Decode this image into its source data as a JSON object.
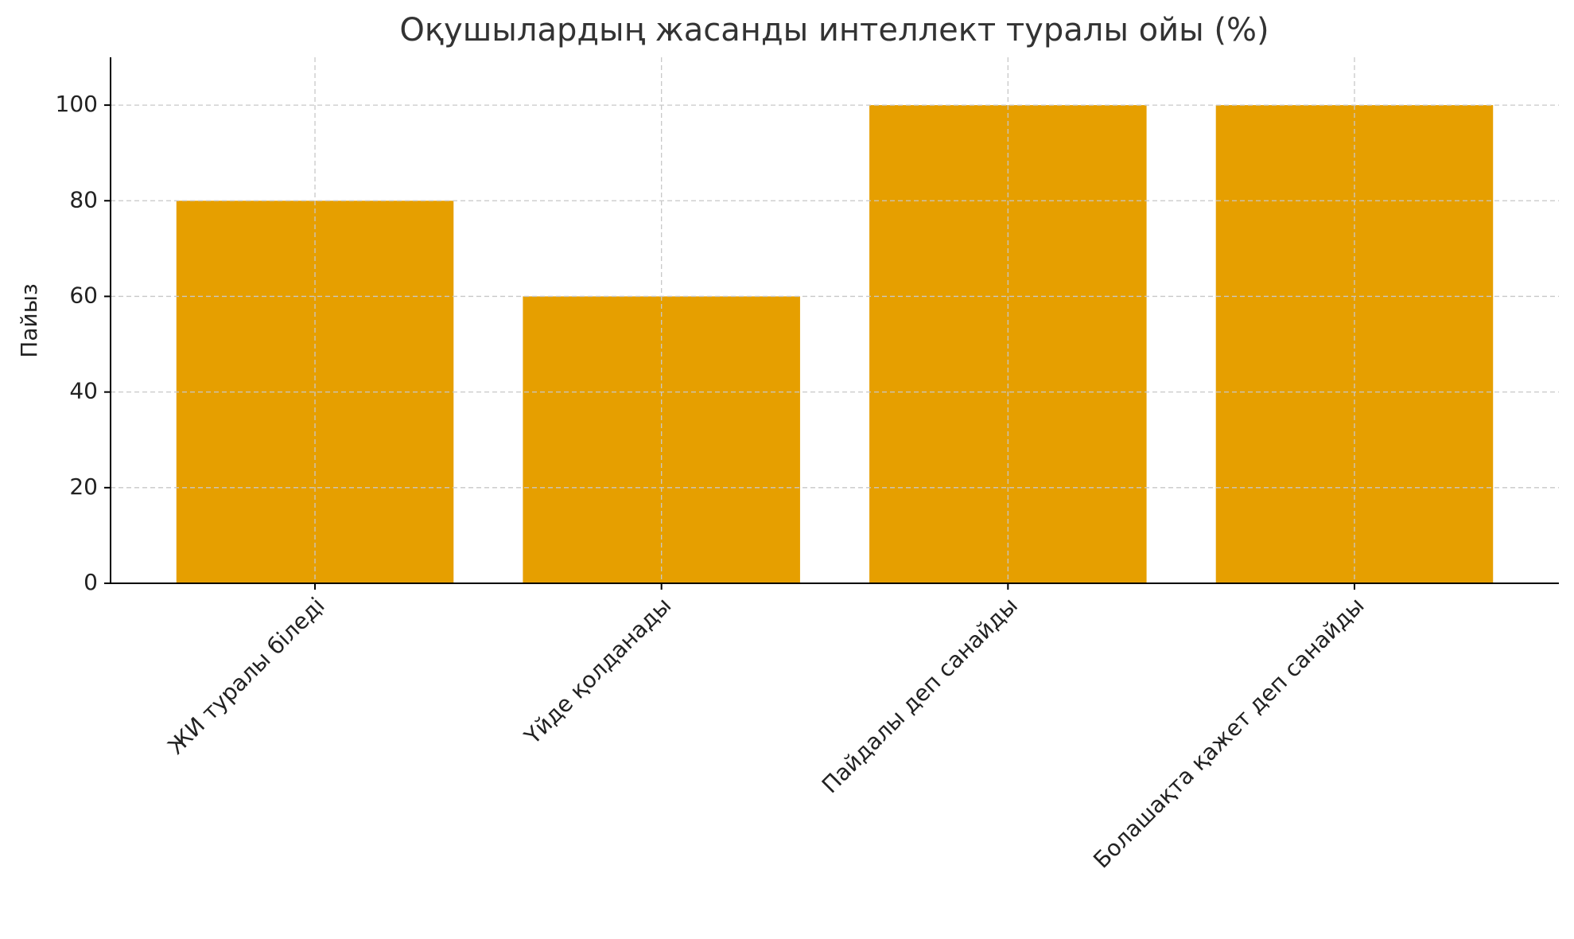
{
  "chart_data": {
    "type": "bar",
    "title": "Оқушылардың жасанды интеллект туралы ойы (%)",
    "ylabel": "Пайыз",
    "categories": [
      "ЖИ туралы біледі",
      "Үйде қолданады",
      "Пайдалы деп санайды",
      "Болашақта қажет деп санайды"
    ],
    "values": [
      80,
      60,
      100,
      100
    ],
    "color": "#e69f00",
    "ylim": [
      0,
      110
    ],
    "yticks": [
      0,
      20,
      40,
      60,
      80,
      100
    ],
    "grid": true
  }
}
